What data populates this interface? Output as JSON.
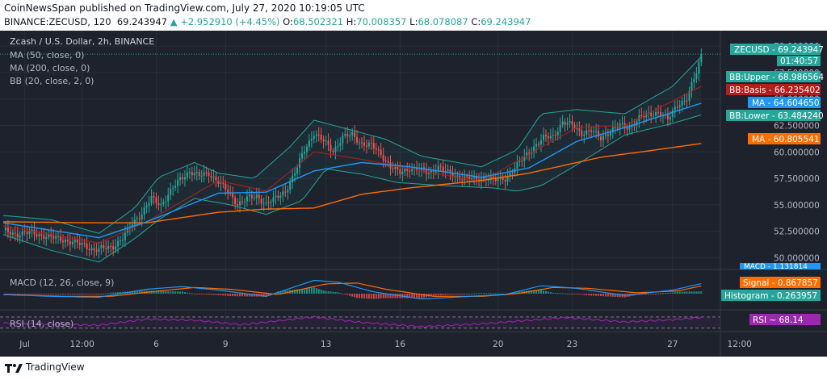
{
  "header": {
    "publisher": "CoinNewsSpan published on TradingView.com, July 27, 2020 10:19:05 UTC",
    "symbol": "BINANCE:ZECUSD, 120",
    "last": "69.243947",
    "change": "▲ +2.952910 (+4.45%)",
    "o_label": "O:",
    "o_value": "68.502321",
    "h_label": "H:",
    "h_value": "70.008357",
    "l_label": "L:",
    "l_value": "68.078087",
    "c_label": "C:",
    "c_value": "69.243947"
  },
  "legend": {
    "title": "Zcash / U.S. Dollar, 2h, BINANCE",
    "ma50": "MA (50, close, 0)",
    "ma200": "MA (200, close, 0)",
    "bb": "BB (20, close, 2, 0)",
    "macd": "MACD (12, 26, close, 9)",
    "rsi": "RSI (14, close)"
  },
  "badges": {
    "zecusd": {
      "label": "ZECUSD",
      "value": "69.243947",
      "timer": "01:40:57"
    },
    "bb_upper": {
      "label": "BB:Upper",
      "value": "68.986564"
    },
    "bb_basis": {
      "label": "BB:Basis",
      "value": "66.235402"
    },
    "ma_fast": {
      "label": "MA",
      "value": "64.604650"
    },
    "bb_lower": {
      "label": "BB:Lower",
      "value": "63.484240"
    },
    "ma_slow": {
      "label": "MA",
      "value": "60.805541"
    },
    "macd": {
      "label": "MACD",
      "value": "1.131814"
    },
    "signal": {
      "label": "Signal",
      "value": "0.867857"
    },
    "histogram": {
      "label": "Histogram",
      "value": "0.263957"
    },
    "rsi": {
      "label": "RSI",
      "value": "68.14"
    }
  },
  "footer": {
    "brand": "TradingView"
  },
  "colors": {
    "bg": "#1e222d",
    "up": "#26a69a",
    "down": "#ef5350",
    "ma_fast": "#2196f3",
    "ma_slow": "#ff6d00",
    "bb_basis": "#b71c1c",
    "bb_band": "#26a69a",
    "macd": "#2196f3",
    "signal": "#ff6d00",
    "rsi": "#9c27b0"
  },
  "chart_data": {
    "type": "candlestick",
    "price_axis": {
      "ticks": [
        "70.000000",
        "67.500000",
        "65.000000",
        "62.500000",
        "60.000000",
        "57.500000",
        "55.000000",
        "52.500000",
        "50.000000"
      ],
      "ylim": [
        49.2,
        71.0
      ]
    },
    "time_axis": {
      "ticks": [
        "Jul",
        "12:00",
        "6",
        "9",
        "13",
        "16",
        "20",
        "23",
        "27",
        "12:00"
      ]
    },
    "close_path": [
      [
        0,
        52.6
      ],
      [
        6,
        52.2
      ],
      [
        12,
        52.4
      ],
      [
        18,
        52.0
      ],
      [
        24,
        51.8
      ],
      [
        28,
        51.5
      ],
      [
        34,
        51.2
      ],
      [
        38,
        50.7
      ],
      [
        42,
        50.9
      ],
      [
        46,
        51.1
      ],
      [
        50,
        51.8
      ],
      [
        54,
        53.3
      ],
      [
        58,
        54.2
      ],
      [
        62,
        55.6
      ],
      [
        66,
        55.0
      ],
      [
        70,
        56.3
      ],
      [
        74,
        57.4
      ],
      [
        78,
        58.2
      ],
      [
        82,
        57.7
      ],
      [
        86,
        58.0
      ],
      [
        90,
        57.2
      ],
      [
        94,
        56.2
      ],
      [
        98,
        55.1
      ],
      [
        102,
        55.6
      ],
      [
        106,
        55.8
      ],
      [
        110,
        55.1
      ],
      [
        114,
        55.6
      ],
      [
        118,
        56.3
      ],
      [
        122,
        58.0
      ],
      [
        126,
        60.2
      ],
      [
        130,
        61.8
      ],
      [
        134,
        61.0
      ],
      [
        138,
        60.1
      ],
      [
        142,
        61.4
      ],
      [
        146,
        61.6
      ],
      [
        150,
        60.8
      ],
      [
        154,
        60.6
      ],
      [
        158,
        59.8
      ],
      [
        162,
        58.6
      ],
      [
        166,
        58.0
      ],
      [
        170,
        58.5
      ],
      [
        174,
        58.3
      ],
      [
        178,
        58.0
      ],
      [
        182,
        58.6
      ],
      [
        186,
        58.0
      ],
      [
        190,
        57.7
      ],
      [
        194,
        57.5
      ],
      [
        198,
        57.4
      ],
      [
        202,
        57.6
      ],
      [
        206,
        57.3
      ],
      [
        210,
        57.5
      ],
      [
        214,
        58.5
      ],
      [
        218,
        59.5
      ],
      [
        222,
        60.5
      ],
      [
        226,
        61.3
      ],
      [
        230,
        61.5
      ],
      [
        234,
        62.8
      ],
      [
        238,
        62.5
      ],
      [
        242,
        61.8
      ],
      [
        246,
        62.0
      ],
      [
        250,
        61.3
      ],
      [
        254,
        62.0
      ],
      [
        258,
        62.5
      ],
      [
        262,
        62.3
      ],
      [
        266,
        63.2
      ],
      [
        270,
        63.5
      ],
      [
        274,
        63.8
      ],
      [
        278,
        63.0
      ],
      [
        282,
        64.5
      ],
      [
        286,
        65.0
      ],
      [
        290,
        67.5
      ],
      [
        292,
        69.2
      ]
    ],
    "ma50": [
      [
        0,
        53.3
      ],
      [
        40,
        51.9
      ],
      [
        60,
        53.4
      ],
      [
        90,
        56.1
      ],
      [
        110,
        56.2
      ],
      [
        130,
        58.2
      ],
      [
        150,
        59.0
      ],
      [
        170,
        58.6
      ],
      [
        200,
        57.6
      ],
      [
        220,
        58.5
      ],
      [
        240,
        61.0
      ],
      [
        260,
        62.3
      ],
      [
        292,
        64.6
      ]
    ],
    "ma200": [
      [
        0,
        53.4
      ],
      [
        40,
        53.3
      ],
      [
        60,
        53.3
      ],
      [
        90,
        54.3
      ],
      [
        110,
        54.6
      ],
      [
        130,
        54.7
      ],
      [
        150,
        56.0
      ],
      [
        170,
        56.6
      ],
      [
        200,
        57.3
      ],
      [
        220,
        58.0
      ],
      [
        250,
        59.5
      ],
      [
        270,
        60.1
      ],
      [
        292,
        60.8
      ]
    ],
    "bb_basis": [
      [
        0,
        53.0
      ],
      [
        40,
        51.4
      ],
      [
        60,
        53.4
      ],
      [
        90,
        57.3
      ],
      [
        110,
        56.3
      ],
      [
        130,
        60.0
      ],
      [
        150,
        59.3
      ],
      [
        170,
        58.4
      ],
      [
        200,
        57.2
      ],
      [
        220,
        59.8
      ],
      [
        240,
        62.3
      ],
      [
        260,
        62.5
      ],
      [
        292,
        66.2
      ]
    ],
    "bb_upper": [
      [
        0,
        54.0
      ],
      [
        20,
        53.6
      ],
      [
        40,
        52.3
      ],
      [
        55,
        54.7
      ],
      [
        65,
        57.6
      ],
      [
        80,
        59.0
      ],
      [
        90,
        58.0
      ],
      [
        105,
        57.5
      ],
      [
        120,
        60.5
      ],
      [
        130,
        63.0
      ],
      [
        145,
        62.1
      ],
      [
        160,
        61.2
      ],
      [
        175,
        59.6
      ],
      [
        200,
        58.6
      ],
      [
        215,
        60.2
      ],
      [
        225,
        63.6
      ],
      [
        240,
        64.0
      ],
      [
        260,
        63.6
      ],
      [
        280,
        66.2
      ],
      [
        292,
        69.0
      ]
    ],
    "bb_lower": [
      [
        0,
        52.2
      ],
      [
        20,
        50.7
      ],
      [
        40,
        49.6
      ],
      [
        55,
        51.8
      ],
      [
        65,
        53.6
      ],
      [
        80,
        55.6
      ],
      [
        95,
        55.0
      ],
      [
        110,
        54.1
      ],
      [
        125,
        55.4
      ],
      [
        135,
        58.4
      ],
      [
        150,
        57.9
      ],
      [
        165,
        57.1
      ],
      [
        185,
        56.8
      ],
      [
        205,
        56.6
      ],
      [
        215,
        56.3
      ],
      [
        225,
        56.8
      ],
      [
        240,
        58.8
      ],
      [
        260,
        61.6
      ],
      [
        280,
        62.7
      ],
      [
        292,
        63.5
      ]
    ],
    "macd": [
      [
        0,
        -0.1
      ],
      [
        20,
        -0.3
      ],
      [
        40,
        -0.4
      ],
      [
        60,
        0.5
      ],
      [
        75,
        0.8
      ],
      [
        90,
        0.4
      ],
      [
        110,
        -0.3
      ],
      [
        130,
        1.5
      ],
      [
        140,
        1.3
      ],
      [
        155,
        0.2
      ],
      [
        175,
        -0.6
      ],
      [
        195,
        -0.3
      ],
      [
        210,
        -0.1
      ],
      [
        225,
        0.9
      ],
      [
        240,
        0.6
      ],
      [
        260,
        -0.2
      ],
      [
        280,
        0.4
      ],
      [
        292,
        1.13
      ]
    ],
    "signal": [
      [
        0,
        -0.1
      ],
      [
        25,
        -0.3
      ],
      [
        45,
        -0.3
      ],
      [
        65,
        0.3
      ],
      [
        80,
        0.7
      ],
      [
        95,
        0.5
      ],
      [
        115,
        -0.1
      ],
      [
        135,
        1.1
      ],
      [
        148,
        1.2
      ],
      [
        160,
        0.5
      ],
      [
        180,
        -0.3
      ],
      [
        200,
        -0.3
      ],
      [
        215,
        0.0
      ],
      [
        230,
        0.7
      ],
      [
        245,
        0.6
      ],
      [
        265,
        0.1
      ],
      [
        282,
        0.3
      ],
      [
        292,
        0.87
      ]
    ],
    "rsi": [
      [
        0,
        48
      ],
      [
        20,
        44
      ],
      [
        40,
        40
      ],
      [
        60,
        62
      ],
      [
        80,
        58
      ],
      [
        100,
        42
      ],
      [
        130,
        70
      ],
      [
        150,
        50
      ],
      [
        175,
        35
      ],
      [
        200,
        45
      ],
      [
        220,
        58
      ],
      [
        235,
        68
      ],
      [
        260,
        52
      ],
      [
        280,
        60
      ],
      [
        292,
        68.14
      ]
    ]
  }
}
